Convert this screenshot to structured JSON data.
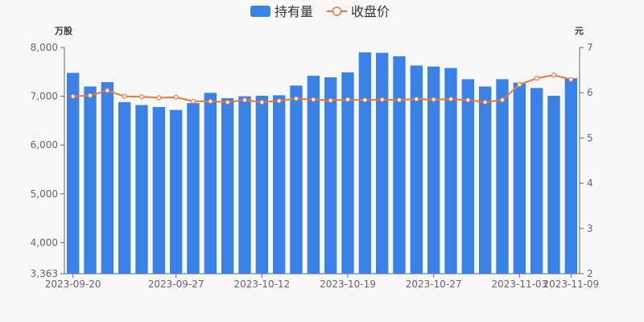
{
  "legend": {
    "bar_label": "持有量",
    "line_label": "收盘价"
  },
  "axes": {
    "left_unit": "万股",
    "right_unit": "元"
  },
  "colors": {
    "bar": "#3b82e6",
    "line": "#e8793a",
    "point_fill": "#ffffff",
    "axis": "#666666",
    "background": "#f8f8f8"
  },
  "chart_data": {
    "type": "bar",
    "x_ticks": [
      "2023-09-20",
      "2023-09-27",
      "2023-10-12",
      "2023-10-19",
      "2023-10-27",
      "2023-11-03",
      "2023-11-09"
    ],
    "x_tick_indices": [
      0,
      6,
      11,
      16,
      21,
      26,
      29
    ],
    "left_axis": {
      "min": 3363,
      "max": 8000,
      "ticks": [
        3363,
        4000,
        5000,
        6000,
        7000,
        8000
      ],
      "tick_labels": [
        "3,363",
        "4,000",
        "5,000",
        "6,000",
        "7,000",
        "8,000"
      ]
    },
    "right_axis": {
      "min": 2,
      "max": 7,
      "ticks": [
        2,
        3,
        4,
        5,
        6,
        7
      ],
      "tick_labels": [
        "2",
        "3",
        "4",
        "5",
        "6",
        "7"
      ]
    },
    "series": [
      {
        "name": "持有量",
        "kind": "bar",
        "axis": "left",
        "values": [
          7480,
          7200,
          7290,
          6880,
          6820,
          6780,
          6720,
          6860,
          7070,
          6960,
          7000,
          7010,
          7020,
          7220,
          7420,
          7390,
          7490,
          7900,
          7890,
          7820,
          7630,
          7610,
          7580,
          7350,
          7200,
          7350,
          7280,
          7170,
          7010,
          7370
        ]
      },
      {
        "name": "收盘价",
        "kind": "line",
        "axis": "right",
        "values": [
          5.92,
          5.94,
          6.05,
          5.92,
          5.91,
          5.89,
          5.9,
          5.81,
          5.81,
          5.79,
          5.84,
          5.79,
          5.82,
          5.87,
          5.85,
          5.83,
          5.85,
          5.84,
          5.85,
          5.84,
          5.86,
          5.85,
          5.86,
          5.84,
          5.79,
          5.84,
          6.18,
          6.32,
          6.39,
          6.29
        ]
      }
    ],
    "legend_position": "top-center",
    "grid": false
  }
}
